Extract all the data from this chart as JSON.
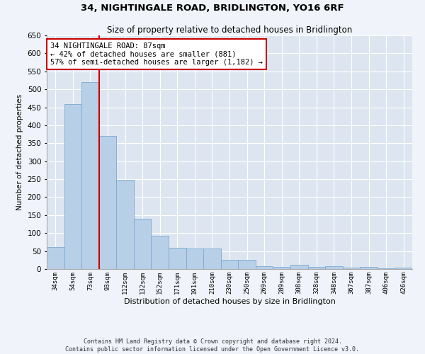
{
  "title": "34, NIGHTINGALE ROAD, BRIDLINGTON, YO16 6RF",
  "subtitle": "Size of property relative to detached houses in Bridlington",
  "xlabel": "Distribution of detached houses by size in Bridlington",
  "ylabel": "Number of detached properties",
  "categories": [
    "34sqm",
    "54sqm",
    "73sqm",
    "93sqm",
    "112sqm",
    "132sqm",
    "152sqm",
    "171sqm",
    "191sqm",
    "210sqm",
    "230sqm",
    "250sqm",
    "269sqm",
    "289sqm",
    "308sqm",
    "328sqm",
    "348sqm",
    "367sqm",
    "387sqm",
    "406sqm",
    "426sqm"
  ],
  "values": [
    62,
    458,
    520,
    370,
    248,
    140,
    93,
    60,
    58,
    57,
    25,
    25,
    8,
    5,
    11,
    5,
    7,
    3,
    5,
    2,
    3
  ],
  "bar_color": "#b8cfe8",
  "bar_edge_color": "#7aaad0",
  "vline_x": 2.5,
  "vline_color": "#cc0000",
  "annotation_text": "34 NIGHTINGALE ROAD: 87sqm\n← 42% of detached houses are smaller (881)\n57% of semi-detached houses are larger (1,182) →",
  "annotation_box_color": "#ffffff",
  "annotation_box_edge": "#cc0000",
  "ylim": [
    0,
    650
  ],
  "yticks": [
    0,
    50,
    100,
    150,
    200,
    250,
    300,
    350,
    400,
    450,
    500,
    550,
    600,
    650
  ],
  "footer": "Contains HM Land Registry data © Crown copyright and database right 2024.\nContains public sector information licensed under the Open Government Licence v3.0.",
  "bg_color": "#f0f4fa",
  "plot_bg_color": "#dde6f0"
}
